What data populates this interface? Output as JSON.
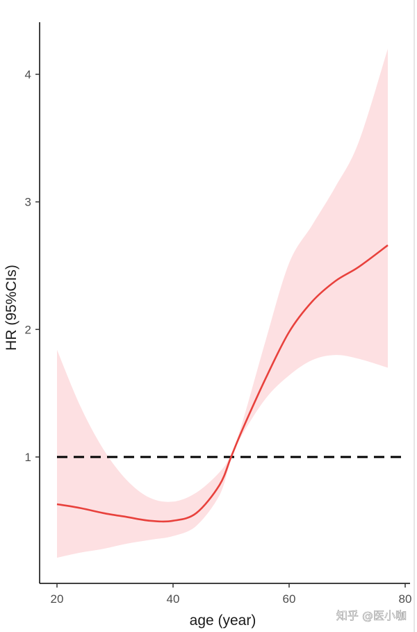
{
  "chart_data": {
    "type": "line",
    "title": "",
    "xlabel": "age (year)",
    "ylabel": "HR (95%CIs)",
    "xlim": [
      17,
      80
    ],
    "ylim": [
      0.1,
      4.4
    ],
    "x_ticks": [
      20,
      40,
      60,
      80
    ],
    "y_ticks": [
      1,
      2,
      3,
      4
    ],
    "reference_line": {
      "y": 1,
      "style": "dashed",
      "color": "#000000"
    },
    "series": [
      {
        "line_color": "#e8413c",
        "band_color": "#fde0e2",
        "x": [
          20,
          24,
          28,
          32,
          36,
          40,
          44,
          48,
          50,
          52,
          56,
          60,
          64,
          68,
          72,
          77
        ],
        "y": [
          0.63,
          0.6,
          0.56,
          0.53,
          0.5,
          0.5,
          0.56,
          0.78,
          1.0,
          1.22,
          1.62,
          1.98,
          2.22,
          2.38,
          2.49,
          2.66
        ],
        "lower": [
          0.21,
          0.25,
          0.28,
          0.32,
          0.35,
          0.38,
          0.46,
          0.7,
          0.98,
          1.18,
          1.46,
          1.64,
          1.76,
          1.8,
          1.77,
          1.7
        ],
        "upper": [
          1.84,
          1.4,
          1.06,
          0.82,
          0.68,
          0.65,
          0.72,
          0.88,
          1.02,
          1.28,
          1.92,
          2.52,
          2.82,
          3.12,
          3.47,
          4.2
        ]
      }
    ]
  },
  "watermark": {
    "text": "知乎 @医小咖"
  }
}
